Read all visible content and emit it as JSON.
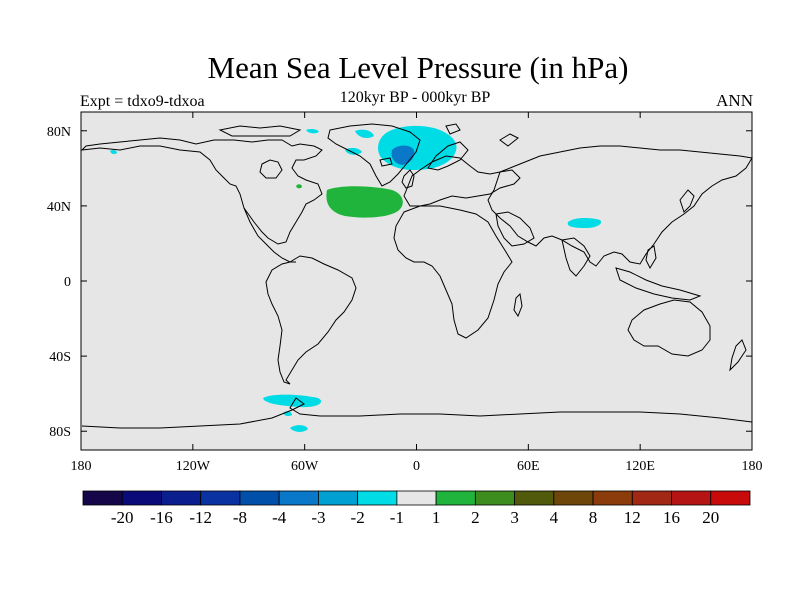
{
  "title": "Mean Sea Level Pressure (in hPa)",
  "subtitle": "120kyr BP - 000kyr BP",
  "left_label": "Expt = tdxo9-tdxoa",
  "right_label": "ANN",
  "lat_ticks": [
    {
      "value": 80,
      "label": "80N"
    },
    {
      "value": 40,
      "label": "40N"
    },
    {
      "value": 0,
      "label": "0"
    },
    {
      "value": -40,
      "label": "40S"
    },
    {
      "value": -80,
      "label": "80S"
    }
  ],
  "lon_ticks": [
    {
      "value": -180,
      "label": "180"
    },
    {
      "value": -120,
      "label": "120W"
    },
    {
      "value": -60,
      "label": "60W"
    },
    {
      "value": 0,
      "label": "0"
    },
    {
      "value": 60,
      "label": "60E"
    },
    {
      "value": 120,
      "label": "120E"
    },
    {
      "value": 180,
      "label": "180"
    }
  ],
  "colorbar": {
    "colors": [
      "#150649",
      "#0a0a78",
      "#0b1e8e",
      "#0a32a0",
      "#0050aa",
      "#0a78c8",
      "#00a0d2",
      "#00dce6",
      "#e6e6e6",
      "#21b43c",
      "#3c8c1e",
      "#505a0a",
      "#6e460a",
      "#8c3c0a",
      "#a02814",
      "#b41414",
      "#c80a0a"
    ],
    "labels": [
      "-20",
      "-16",
      "-12",
      "-8",
      "-4",
      "-3",
      "-2",
      "-1",
      "1",
      "2",
      "3",
      "4",
      "8",
      "12",
      "16",
      "20"
    ]
  },
  "map": {
    "background": "#e6e6e6",
    "coast_color": "#000000"
  }
}
